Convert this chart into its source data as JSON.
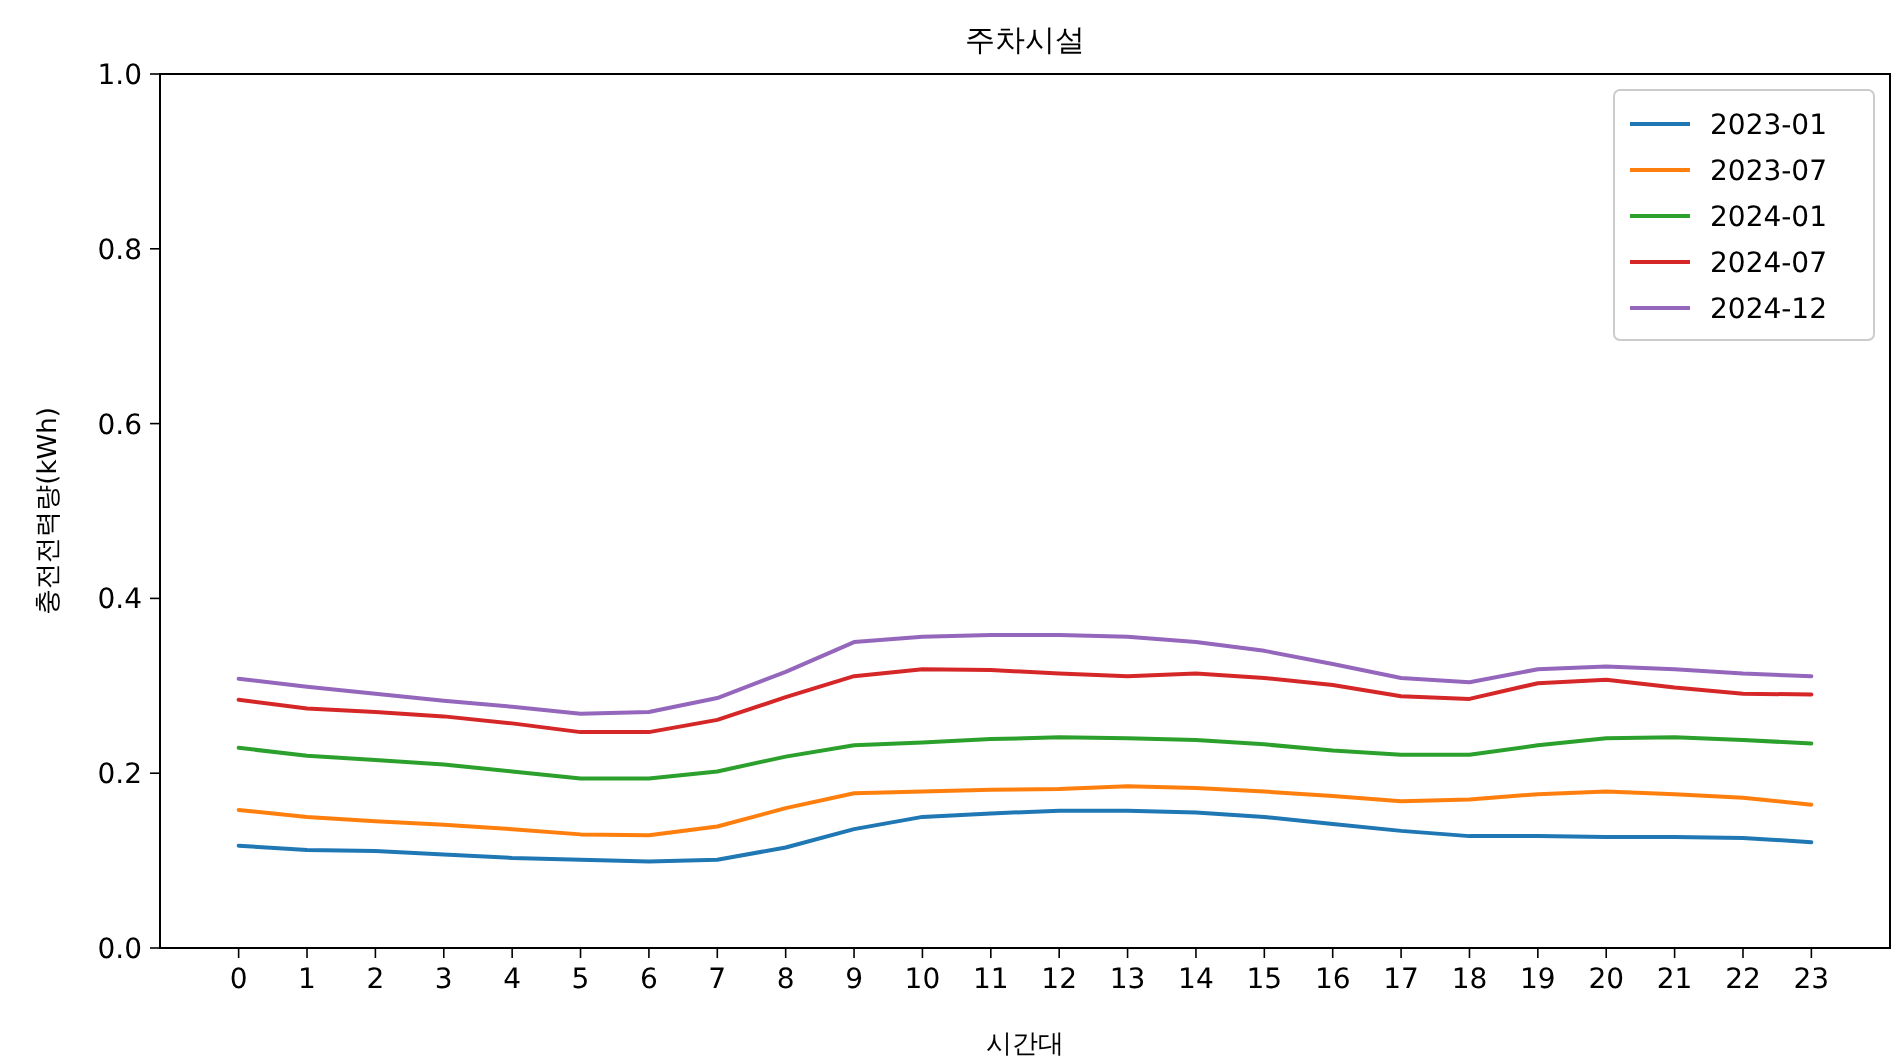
{
  "chart_data": {
    "type": "line",
    "title": "주차시설",
    "xlabel": "시간대",
    "ylabel": "충전전력량(kWh)",
    "x": [
      0,
      1,
      2,
      3,
      4,
      5,
      6,
      7,
      8,
      9,
      10,
      11,
      12,
      13,
      14,
      15,
      16,
      17,
      18,
      19,
      20,
      21,
      22,
      23
    ],
    "xlim": [
      -1.15,
      24.15
    ],
    "xticks": [
      0,
      1,
      2,
      3,
      4,
      5,
      6,
      7,
      8,
      9,
      10,
      11,
      12,
      13,
      14,
      15,
      16,
      17,
      18,
      19,
      20,
      21,
      22,
      23
    ],
    "ylim": [
      0,
      1
    ],
    "yticks": [
      {
        "value": 0,
        "label": "0.0"
      },
      {
        "value": 0.2,
        "label": "0.2"
      },
      {
        "value": 0.4,
        "label": "0.4"
      },
      {
        "value": 0.6,
        "label": "0.6"
      },
      {
        "value": 0.8,
        "label": "0.8"
      },
      {
        "value": 1,
        "label": "1.0"
      }
    ],
    "legend": "top right",
    "grid": false,
    "series": [
      {
        "name": "2023-01",
        "color": "#1f77b4",
        "values": [
          0.117,
          0.112,
          0.111,
          0.107,
          0.103,
          0.101,
          0.099,
          0.101,
          0.115,
          0.136,
          0.15,
          0.154,
          0.157,
          0.157,
          0.155,
          0.15,
          0.142,
          0.134,
          0.128,
          0.128,
          0.127,
          0.127,
          0.126,
          0.121
        ]
      },
      {
        "name": "2023-07",
        "color": "#ff7f0e",
        "values": [
          0.158,
          0.15,
          0.145,
          0.141,
          0.136,
          0.13,
          0.129,
          0.139,
          0.16,
          0.177,
          0.179,
          0.181,
          0.182,
          0.185,
          0.183,
          0.179,
          0.174,
          0.168,
          0.17,
          0.176,
          0.179,
          0.176,
          0.172,
          0.164
        ]
      },
      {
        "name": "2024-01",
        "color": "#2ca02c",
        "values": [
          0.229,
          0.22,
          0.215,
          0.21,
          0.202,
          0.194,
          0.194,
          0.202,
          0.219,
          0.232,
          0.235,
          0.239,
          0.241,
          0.24,
          0.238,
          0.233,
          0.226,
          0.221,
          0.221,
          0.232,
          0.24,
          0.241,
          0.238,
          0.234
        ]
      },
      {
        "name": "2024-07",
        "color": "#d62728",
        "values": [
          0.284,
          0.274,
          0.27,
          0.265,
          0.257,
          0.247,
          0.247,
          0.261,
          0.287,
          0.311,
          0.319,
          0.318,
          0.314,
          0.311,
          0.314,
          0.309,
          0.301,
          0.288,
          0.285,
          0.303,
          0.307,
          0.298,
          0.291,
          0.29
        ]
      },
      {
        "name": "2024-12",
        "color": "#9467bd",
        "values": [
          0.308,
          0.299,
          0.291,
          0.283,
          0.276,
          0.268,
          0.27,
          0.286,
          0.316,
          0.35,
          0.356,
          0.358,
          0.358,
          0.356,
          0.35,
          0.34,
          0.325,
          0.309,
          0.304,
          0.319,
          0.322,
          0.319,
          0.314,
          0.311
        ]
      }
    ]
  }
}
